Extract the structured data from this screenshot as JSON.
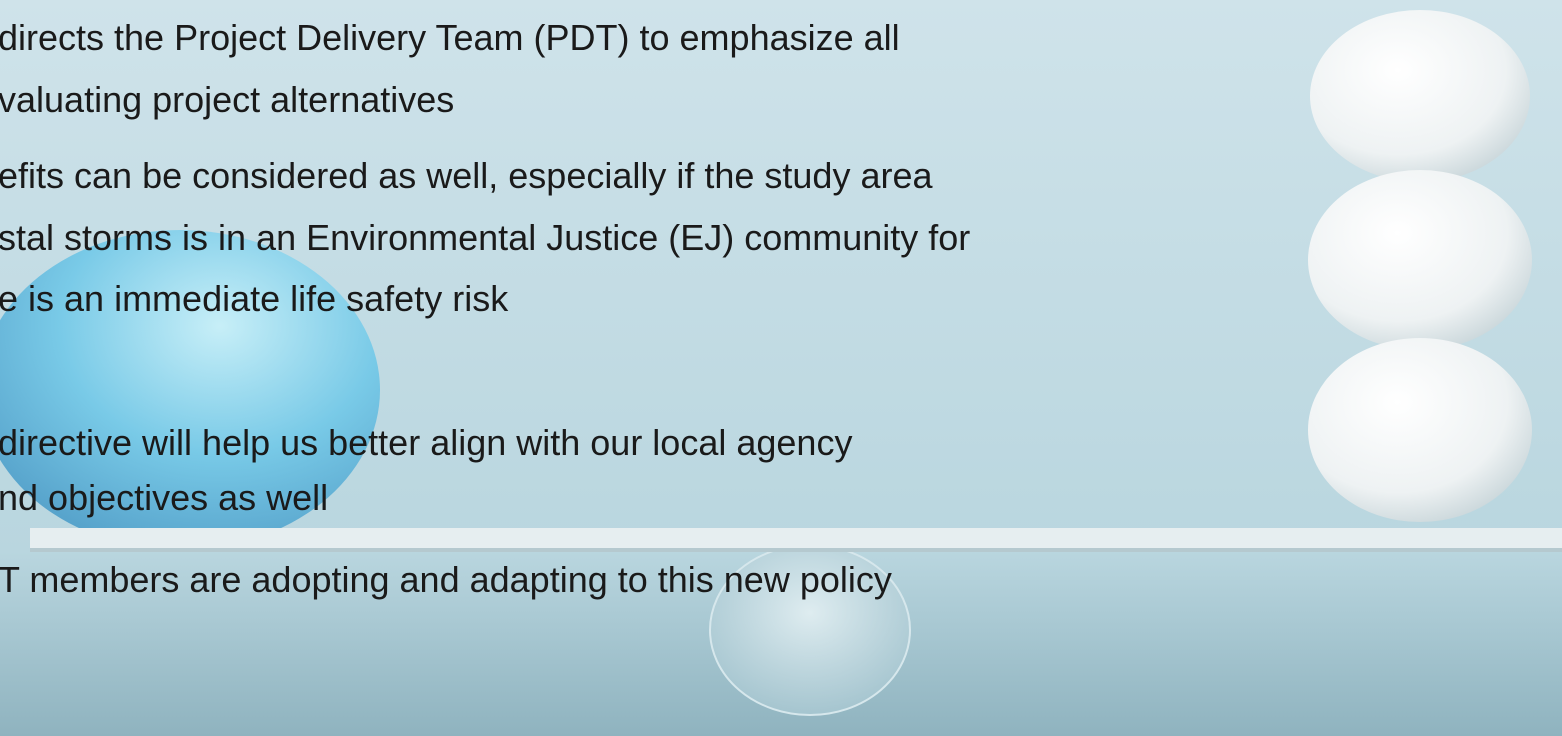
{
  "paragraphs": [
    {
      "lines": [
        "directs the Project Delivery Team (PDT) to emphasize all",
        "valuating project alternatives"
      ]
    },
    {
      "lines": [
        "efits can be considered as well, especially if the study area",
        "stal storms is in an Environmental Justice (EJ) community for",
        "e is an immediate life safety risk"
      ]
    },
    {
      "lines": [
        "directive will help us better align with our local agency",
        "nd objectives as well"
      ]
    },
    {
      "lines": [
        "T members are adopting and adapting to this new policy"
      ]
    }
  ]
}
